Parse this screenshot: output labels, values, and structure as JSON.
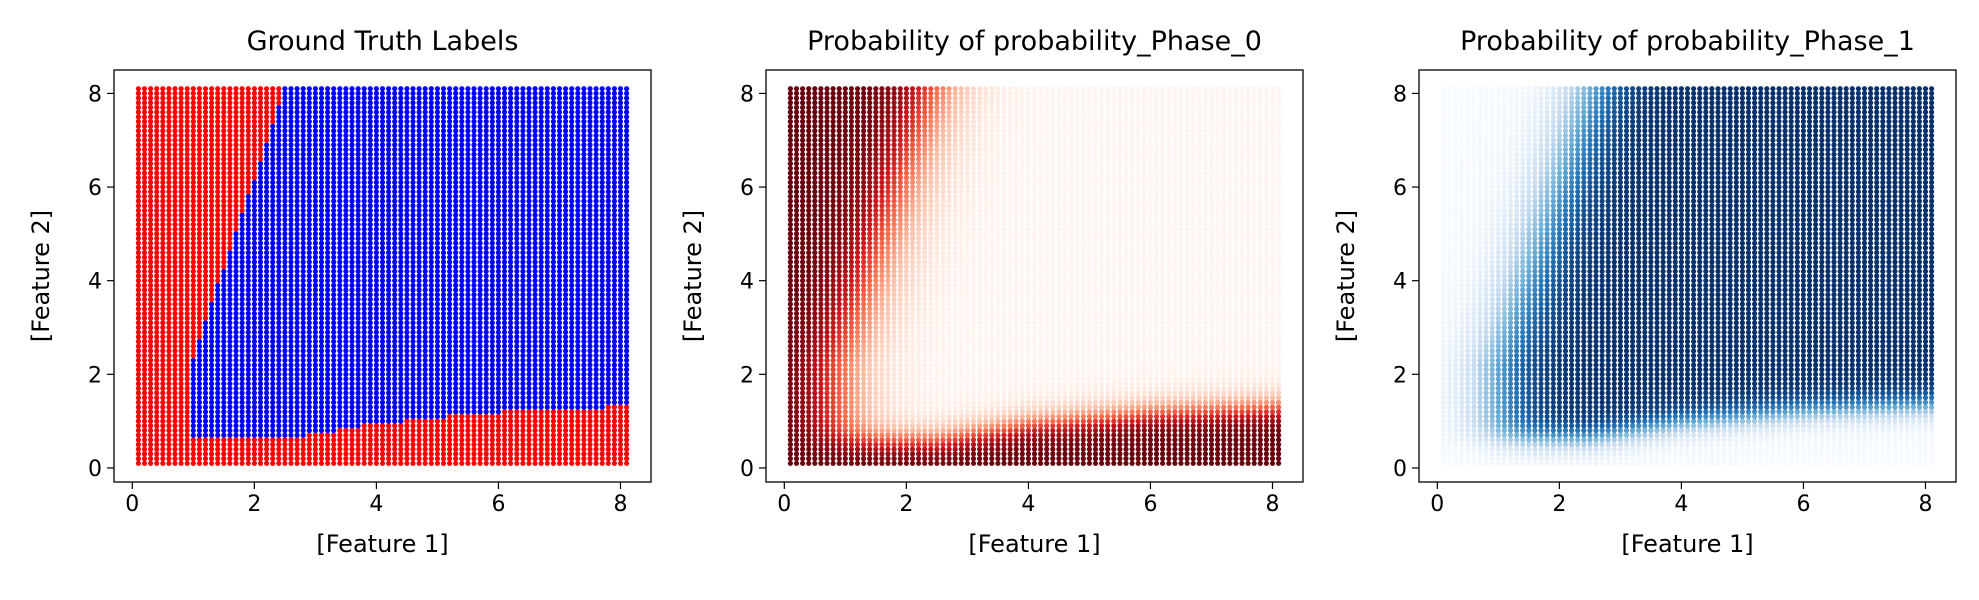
{
  "chart_data": [
    {
      "type": "scatter",
      "title": "Ground Truth Labels",
      "xlabel": "[Feature 1]",
      "ylabel": "[Feature 2]",
      "xlim": [
        -0.3,
        8.5
      ],
      "ylim": [
        -0.3,
        8.5
      ],
      "xticks": [
        0,
        2,
        4,
        6,
        8
      ],
      "yticks": [
        0,
        2,
        4,
        6,
        8
      ],
      "grid": false,
      "legend": "none",
      "color_mode": "labels",
      "classes": [
        {
          "label": 0,
          "color": "#ff0000"
        },
        {
          "label": 1,
          "color": "#0000ff"
        }
      ],
      "points": {
        "x_range": [
          0.1,
          8.1
        ],
        "y_range": [
          0.1,
          8.1
        ],
        "samples_per_axis": 81,
        "left_boundary": {
          "x_at_top": 2.5,
          "x_at_bottom": 0.95,
          "y_bottom": 2.2
        },
        "bottom_boundary": [
          {
            "x": 0.95,
            "y": 0.6
          },
          {
            "x": 2.5,
            "y": 0.62
          },
          {
            "x": 4.0,
            "y": 0.95
          },
          {
            "x": 6.0,
            "y": 1.2
          },
          {
            "x": 8.1,
            "y": 1.32
          }
        ]
      }
    },
    {
      "type": "scatter",
      "title": "Probability of probability_Phase_0",
      "xlabel": "[Feature 1]",
      "ylabel": "[Feature 2]",
      "xlim": [
        -0.3,
        8.5
      ],
      "ylim": [
        -0.3,
        8.5
      ],
      "xticks": [
        0,
        2,
        4,
        6,
        8
      ],
      "yticks": [
        0,
        2,
        4,
        6,
        8
      ],
      "grid": false,
      "legend": "none",
      "color_mode": "probability",
      "phase": 0,
      "colormap": "Reds",
      "colormap_stops": [
        "#fff5f0",
        "#fcbba1",
        "#fb6a4a",
        "#cb181d",
        "#67000d"
      ]
    },
    {
      "type": "scatter",
      "title": "Probability of probability_Phase_1",
      "xlabel": "[Feature 1]",
      "ylabel": "[Feature 2]",
      "xlim": [
        -0.3,
        8.5
      ],
      "ylim": [
        -0.3,
        8.5
      ],
      "xticks": [
        0,
        2,
        4,
        6,
        8
      ],
      "yticks": [
        0,
        2,
        4,
        6,
        8
      ],
      "grid": false,
      "legend": "none",
      "color_mode": "probability",
      "phase": 1,
      "colormap": "Blues",
      "colormap_stops": [
        "#f7fbff",
        "#c6dbef",
        "#6baed6",
        "#2171b5",
        "#08306b"
      ]
    }
  ]
}
